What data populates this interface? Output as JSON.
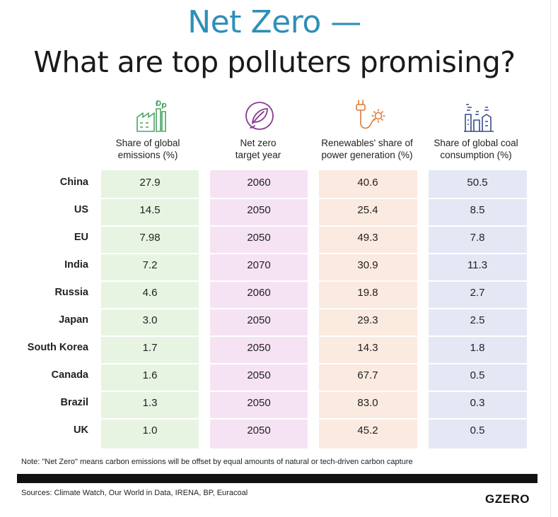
{
  "title_line1": "Net Zero —",
  "title_line2": "What are top polluters promising?",
  "columns": [
    {
      "label_l1": "Share of global",
      "label_l2": "emissions (%)",
      "icon": "factory-icon",
      "color": "#e8f4e2"
    },
    {
      "label_l1": "Net zero",
      "label_l2": "target year",
      "icon": "leaf-circle-icon",
      "color": "#f5e3f4"
    },
    {
      "label_l1": "Renewables' share of",
      "label_l2": "power generation (%)",
      "icon": "plug-sun-icon",
      "color": "#fbeae0"
    },
    {
      "label_l1": "Share of global coal",
      "label_l2": "consumption (%)",
      "icon": "power-plant-icon",
      "color": "#e4e8f5"
    }
  ],
  "icon_colors": {
    "green": "#4aa564",
    "purple": "#8a3b8f",
    "orange": "#e07a3a",
    "navy": "#3a4a8a"
  },
  "rows": [
    {
      "country": "China",
      "values": [
        "27.9",
        "2060",
        "40.6",
        "50.5"
      ]
    },
    {
      "country": "US",
      "values": [
        "14.5",
        "2050",
        "25.4",
        "8.5"
      ]
    },
    {
      "country": "EU",
      "values": [
        "7.98",
        "2050",
        "49.3",
        "7.8"
      ]
    },
    {
      "country": "India",
      "values": [
        "7.2",
        "2070",
        "30.9",
        "11.3"
      ]
    },
    {
      "country": "Russia",
      "values": [
        "4.6",
        "2060",
        "19.8",
        "2.7"
      ]
    },
    {
      "country": "Japan",
      "values": [
        "3.0",
        "2050",
        "29.3",
        "2.5"
      ]
    },
    {
      "country": "South Korea",
      "values": [
        "1.7",
        "2050",
        "14.3",
        "1.8"
      ]
    },
    {
      "country": "Canada",
      "values": [
        "1.6",
        "2050",
        "67.7",
        "0.5"
      ]
    },
    {
      "country": "Brazil",
      "values": [
        "1.3",
        "2050",
        "83.0",
        "0.3"
      ]
    },
    {
      "country": "UK",
      "values": [
        "1.0",
        "2050",
        "45.2",
        "0.5"
      ]
    }
  ],
  "note": "Note: \"Net Zero\" means carbon emissions will be offset by equal amounts of natural or tech-driven carbon capture",
  "sources": "Sources: Climate Watch, Our World in Data, IRENA, BP, Euracoal",
  "logo": "GZERO",
  "chart_data": {
    "type": "table",
    "title": "Net Zero — What are top polluters promising?",
    "columns": [
      "Share of global emissions (%)",
      "Net zero target year",
      "Renewables' share of power generation (%)",
      "Share of global coal consumption (%)"
    ],
    "rows": [
      {
        "country": "China",
        "emissions_share": 27.9,
        "net_zero_year": 2060,
        "renewables_share": 40.6,
        "coal_share": 50.5
      },
      {
        "country": "US",
        "emissions_share": 14.5,
        "net_zero_year": 2050,
        "renewables_share": 25.4,
        "coal_share": 8.5
      },
      {
        "country": "EU",
        "emissions_share": 7.98,
        "net_zero_year": 2050,
        "renewables_share": 49.3,
        "coal_share": 7.8
      },
      {
        "country": "India",
        "emissions_share": 7.2,
        "net_zero_year": 2070,
        "renewables_share": 30.9,
        "coal_share": 11.3
      },
      {
        "country": "Russia",
        "emissions_share": 4.6,
        "net_zero_year": 2060,
        "renewables_share": 19.8,
        "coal_share": 2.7
      },
      {
        "country": "Japan",
        "emissions_share": 3.0,
        "net_zero_year": 2050,
        "renewables_share": 29.3,
        "coal_share": 2.5
      },
      {
        "country": "South Korea",
        "emissions_share": 1.7,
        "net_zero_year": 2050,
        "renewables_share": 14.3,
        "coal_share": 1.8
      },
      {
        "country": "Canada",
        "emissions_share": 1.6,
        "net_zero_year": 2050,
        "renewables_share": 67.7,
        "coal_share": 0.5
      },
      {
        "country": "Brazil",
        "emissions_share": 1.3,
        "net_zero_year": 2050,
        "renewables_share": 83.0,
        "coal_share": 0.3
      },
      {
        "country": "UK",
        "emissions_share": 1.0,
        "net_zero_year": 2050,
        "renewables_share": 45.2,
        "coal_share": 0.5
      }
    ]
  }
}
